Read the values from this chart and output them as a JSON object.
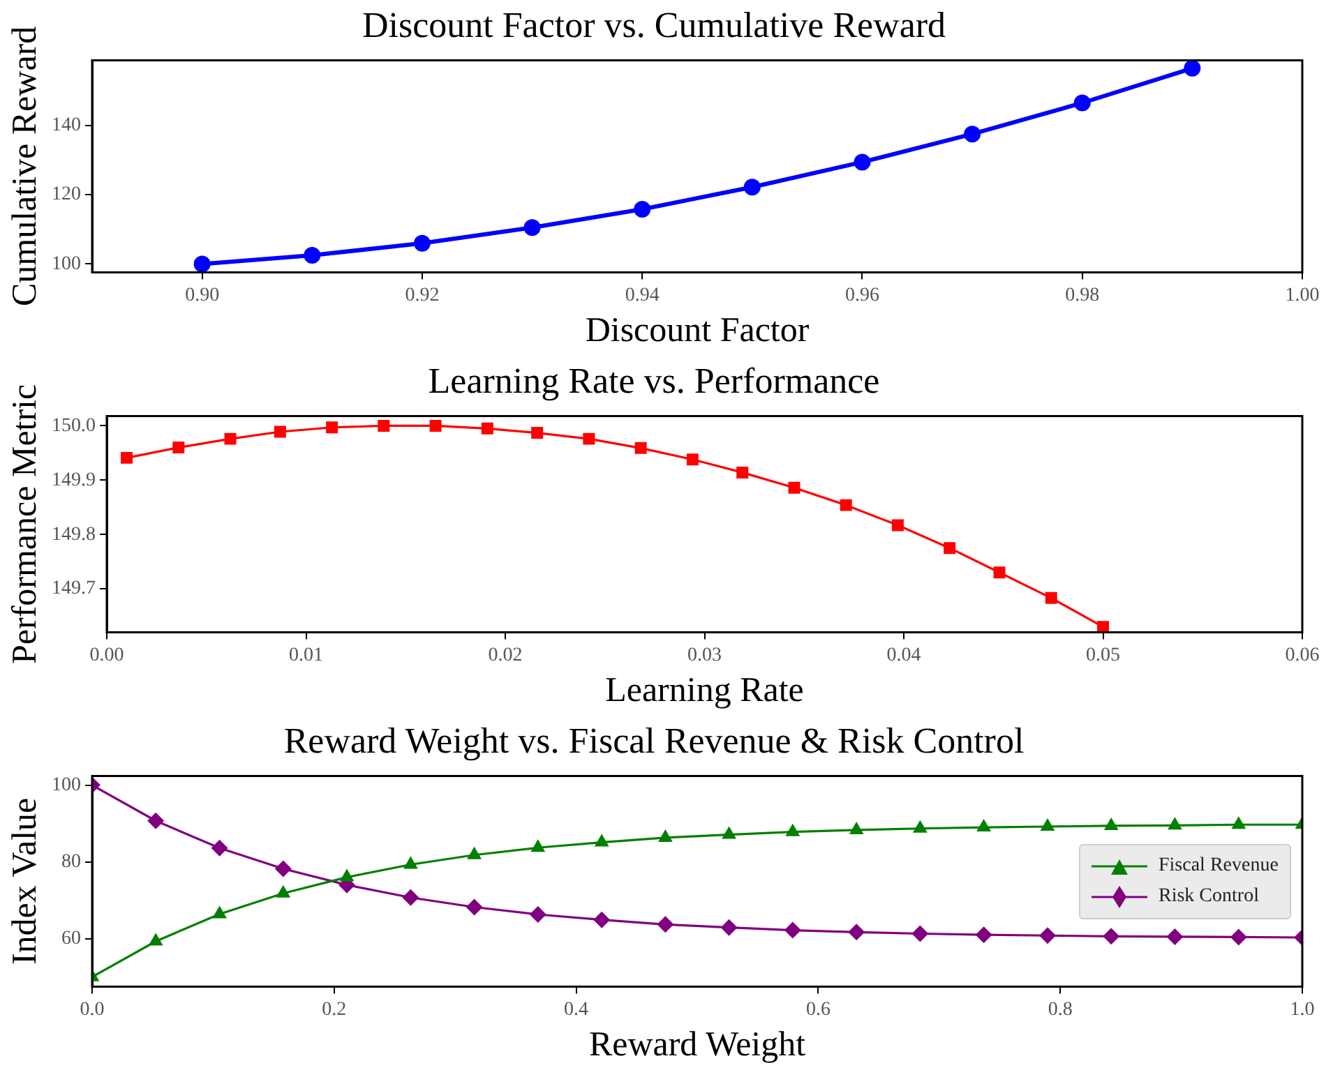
{
  "chart_data": [
    {
      "type": "line",
      "title": "Discount Factor vs. Cumulative Reward",
      "xlabel": "Discount Factor",
      "ylabel": "Cumulative Reward",
      "x": [
        0.9,
        0.91,
        0.92,
        0.93,
        0.94,
        0.95,
        0.96,
        0.97,
        0.98,
        0.99
      ],
      "series": [
        {
          "color": "#0000ff",
          "marker": "circle",
          "values": [
            100,
            102.5,
            106,
            110.5,
            115.8,
            122.2,
            129.4,
            137.5,
            146.5,
            156.5
          ]
        }
      ],
      "xlim": [
        0.89,
        1.0
      ],
      "xticks": [
        {
          "value": 0.9,
          "label": "0.90"
        },
        0.92,
        0.94,
        0.96,
        0.98,
        {
          "value": 1.0,
          "label": "1.00"
        }
      ],
      "ylim": [
        97.6,
        158.8
      ],
      "yticks": [
        100,
        120,
        140
      ],
      "grid": false,
      "line_style": "solid"
    },
    {
      "type": "line",
      "title": "Learning Rate vs. Performance",
      "xlabel": "Learning Rate",
      "ylabel": "Performance Metric",
      "x": [
        0.001,
        0.0036,
        0.0062,
        0.0087,
        0.0113,
        0.0139,
        0.0165,
        0.0191,
        0.0216,
        0.0242,
        0.0268,
        0.0294,
        0.0319,
        0.0345,
        0.0371,
        0.0397,
        0.0423,
        0.0448,
        0.0474,
        0.05
      ],
      "series": [
        {
          "color": "#ff0000",
          "marker": "square",
          "values": [
            149.941,
            149.96,
            149.976,
            149.989,
            149.997,
            150.0,
            150.0,
            149.995,
            149.987,
            149.976,
            149.959,
            149.938,
            149.914,
            149.886,
            149.854,
            149.817,
            149.775,
            149.73,
            149.683,
            149.63
          ]
        }
      ],
      "xlim": [
        0,
        0.06
      ],
      "xticks": [
        {
          "value": 0,
          "label": "0.00"
        },
        0.01,
        0.02,
        0.03,
        0.04,
        0.05,
        0.06
      ],
      "ylim": [
        149.62,
        150.018
      ],
      "yticks": [
        149.7,
        149.8,
        149.9,
        {
          "value": 150,
          "label": "150.0"
        }
      ],
      "grid": false,
      "line_style": "solid"
    },
    {
      "type": "line",
      "title": "Reward Weight vs. Fiscal Revenue & Risk Control",
      "xlabel": "Reward Weight",
      "ylabel": "Index Value",
      "x": [
        0,
        0.0526,
        0.1053,
        0.1579,
        0.2105,
        0.2632,
        0.3158,
        0.3684,
        0.4211,
        0.4737,
        0.5263,
        0.5789,
        0.6316,
        0.6842,
        0.7368,
        0.7895,
        0.8421,
        0.8947,
        0.9474,
        1.0
      ],
      "series": [
        {
          "name": "Fiscal Revenue",
          "color": "#008000",
          "marker": "triangle",
          "values": [
            50,
            59.3,
            66.4,
            71.8,
            76.0,
            79.3,
            81.8,
            83.7,
            85.1,
            86.3,
            87.1,
            87.8,
            88.3,
            88.7,
            89.0,
            89.2,
            89.4,
            89.5,
            89.7,
            89.7
          ]
        },
        {
          "name": "Risk Control",
          "color": "#800080",
          "marker": "diamond",
          "values": [
            100,
            90.7,
            83.6,
            78.2,
            74.0,
            70.7,
            68.2,
            66.3,
            64.9,
            63.7,
            62.9,
            62.2,
            61.7,
            61.3,
            61.0,
            60.8,
            60.6,
            60.5,
            60.4,
            60.3
          ]
        }
      ],
      "xlim": [
        0,
        1.0
      ],
      "xticks": [
        {
          "value": 0,
          "label": "0.0"
        },
        0.2,
        0.4,
        0.6,
        0.8,
        {
          "value": 1.0,
          "label": "1.0"
        }
      ],
      "ylim": [
        47.5,
        102.4
      ],
      "yticks": [
        60,
        80,
        100
      ],
      "grid": false,
      "legend": "right",
      "line_style": "solid"
    }
  ]
}
